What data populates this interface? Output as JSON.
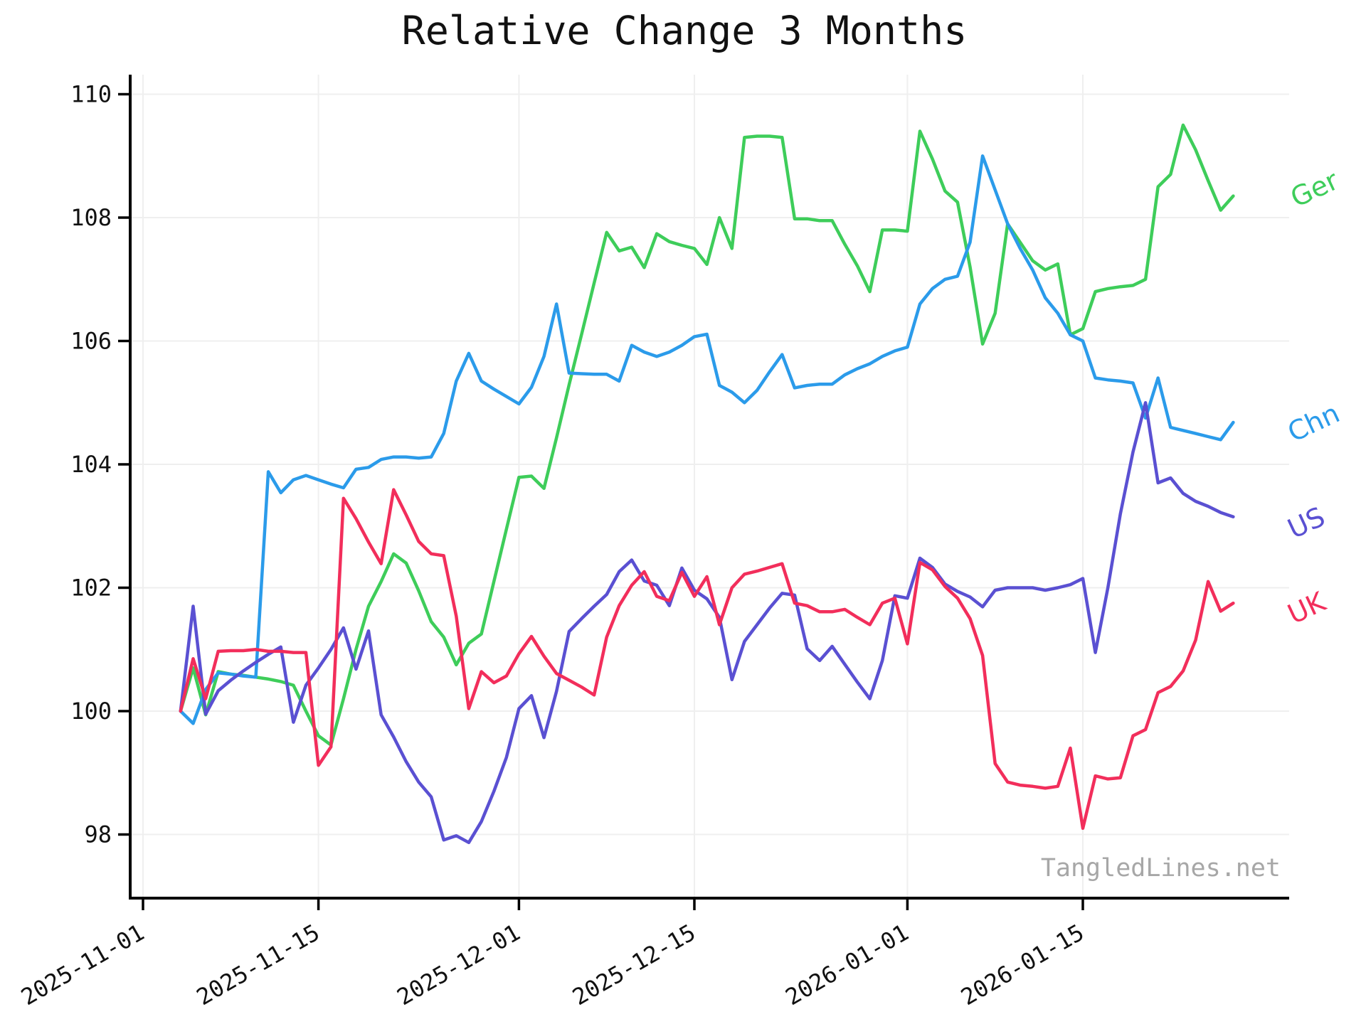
{
  "title": "Relative Change 3 Months",
  "watermark": "TangledLines.net",
  "chart_data": {
    "type": "line",
    "title": "Relative Change 3 Months",
    "xlabel": "",
    "ylabel": "",
    "grid": true,
    "legend_position": "right-of-plot-rotated",
    "ylim": [
      96.95,
      110.35
    ],
    "xlim": [
      "2025-10-31",
      "2026-02-01"
    ],
    "y_ticks": [
      98,
      100,
      102,
      104,
      106,
      108,
      110
    ],
    "x_ticks": [
      {
        "date": "2025-11-01",
        "label": "2025-11-01"
      },
      {
        "date": "2025-11-15",
        "label": "2025-11-15"
      },
      {
        "date": "2025-12-01",
        "label": "2025-12-01"
      },
      {
        "date": "2025-12-15",
        "label": "2025-12-15"
      },
      {
        "date": "2026-01-01",
        "label": "2026-01-01"
      },
      {
        "date": "2026-01-15",
        "label": "2026-01-15"
      }
    ],
    "x": [
      "2025-11-04",
      "2025-11-05",
      "2025-11-06",
      "2025-11-07",
      "2025-11-08",
      "2025-11-09",
      "2025-11-10",
      "2025-11-11",
      "2025-11-12",
      "2025-11-13",
      "2025-11-14",
      "2025-11-15",
      "2025-11-16",
      "2025-11-17",
      "2025-11-18",
      "2025-11-19",
      "2025-11-20",
      "2025-11-21",
      "2025-11-22",
      "2025-11-23",
      "2025-11-24",
      "2025-11-25",
      "2025-11-26",
      "2025-11-27",
      "2025-11-28",
      "2025-11-29",
      "2025-11-30",
      "2025-12-01",
      "2025-12-02",
      "2025-12-03",
      "2025-12-04",
      "2025-12-05",
      "2025-12-06",
      "2025-12-07",
      "2025-12-08",
      "2025-12-09",
      "2025-12-10",
      "2025-12-11",
      "2025-12-12",
      "2025-12-13",
      "2025-12-14",
      "2025-12-15",
      "2025-12-16",
      "2025-12-17",
      "2025-12-18",
      "2025-12-19",
      "2025-12-20",
      "2025-12-21",
      "2025-12-22",
      "2025-12-23",
      "2025-12-24",
      "2025-12-25",
      "2025-12-26",
      "2025-12-27",
      "2025-12-28",
      "2025-12-29",
      "2025-12-30",
      "2025-12-31",
      "2026-01-01",
      "2026-01-02",
      "2026-01-03",
      "2026-01-04",
      "2026-01-05",
      "2026-01-06",
      "2026-01-07",
      "2026-01-08",
      "2026-01-09",
      "2026-01-10",
      "2026-01-11",
      "2026-01-12",
      "2026-01-13",
      "2026-01-14",
      "2026-01-15",
      "2026-01-16",
      "2026-01-17",
      "2026-01-18",
      "2026-01-19",
      "2026-01-20",
      "2026-01-21",
      "2026-01-22",
      "2026-01-23",
      "2026-01-24",
      "2026-01-25",
      "2026-01-26",
      "2026-01-27"
    ],
    "series": [
      {
        "name": "Ger",
        "color": "#3ecd5a",
        "values": [
          100.0,
          100.7,
          99.94,
          100.64,
          100.6,
          100.58,
          100.55,
          100.52,
          100.48,
          100.42,
          100.0,
          99.6,
          99.45,
          100.2,
          101.0,
          101.7,
          102.1,
          102.55,
          102.4,
          101.95,
          101.45,
          101.2,
          100.75,
          101.1,
          101.25,
          102.1,
          102.95,
          103.79,
          103.81,
          103.61,
          104.43,
          105.29,
          106.11,
          106.94,
          107.76,
          107.46,
          107.52,
          107.19,
          107.74,
          107.61,
          107.55,
          107.5,
          107.24,
          108.0,
          107.5,
          109.3,
          109.32,
          109.32,
          109.3,
          107.98,
          107.98,
          107.95,
          107.95,
          107.57,
          107.22,
          106.8,
          107.8,
          107.8,
          107.78,
          109.4,
          108.95,
          108.43,
          108.25,
          107.2,
          105.95,
          106.45,
          107.9,
          107.6,
          107.3,
          107.15,
          107.25,
          106.1,
          106.2,
          106.8,
          106.85,
          106.88,
          106.9,
          107.0,
          108.5,
          108.7,
          109.5,
          109.1,
          108.6,
          108.12,
          108.35
        ]
      },
      {
        "name": "Chn",
        "color": "#2b9bea",
        "values": [
          100.0,
          99.8,
          100.35,
          100.62,
          100.6,
          100.57,
          100.55,
          103.88,
          103.54,
          103.75,
          103.82,
          103.75,
          103.68,
          103.62,
          103.92,
          103.95,
          104.08,
          104.12,
          104.12,
          104.1,
          104.12,
          104.5,
          105.35,
          105.8,
          105.35,
          105.22,
          105.1,
          104.98,
          105.25,
          105.75,
          106.6,
          105.48,
          105.47,
          105.46,
          105.46,
          105.35,
          105.93,
          105.82,
          105.75,
          105.82,
          105.93,
          106.07,
          106.11,
          105.28,
          105.17,
          105.0,
          105.2,
          105.5,
          105.78,
          105.24,
          105.28,
          105.3,
          105.3,
          105.45,
          105.55,
          105.63,
          105.75,
          105.84,
          105.9,
          106.6,
          106.85,
          107.0,
          107.05,
          107.6,
          109.0,
          108.45,
          107.9,
          107.5,
          107.15,
          106.7,
          106.45,
          106.1,
          106.0,
          105.4,
          105.37,
          105.35,
          105.32,
          104.75,
          105.4,
          104.6,
          104.55,
          104.5,
          104.45,
          104.4,
          104.68
        ]
      },
      {
        "name": "US",
        "color": "#5a50d2",
        "values": [
          100.0,
          101.7,
          99.95,
          100.33,
          100.5,
          100.65,
          100.79,
          100.92,
          101.04,
          99.82,
          100.42,
          100.7,
          101.0,
          101.35,
          100.68,
          101.3,
          99.94,
          99.58,
          99.18,
          98.85,
          98.61,
          97.91,
          97.98,
          97.87,
          98.21,
          98.7,
          99.25,
          100.04,
          100.25,
          99.57,
          100.32,
          101.29,
          101.5,
          101.7,
          101.89,
          102.26,
          102.45,
          102.11,
          102.04,
          101.71,
          102.32,
          101.96,
          101.82,
          101.52,
          100.51,
          101.13,
          101.4,
          101.67,
          101.91,
          101.88,
          101.01,
          100.82,
          101.05,
          100.76,
          100.47,
          100.2,
          100.82,
          101.87,
          101.83,
          102.48,
          102.33,
          102.06,
          101.94,
          101.85,
          101.69,
          101.96,
          102.0,
          102.0,
          102.0,
          101.96,
          102.0,
          102.05,
          102.15,
          100.95,
          102.0,
          103.2,
          104.2,
          105.0,
          103.7,
          103.78,
          103.53,
          103.4,
          103.32,
          103.22,
          103.15
        ]
      },
      {
        "name": "UK",
        "color": "#f22e5b",
        "values": [
          100.0,
          100.85,
          100.2,
          100.97,
          100.98,
          100.98,
          101.0,
          100.97,
          100.97,
          100.95,
          100.95,
          99.12,
          99.42,
          103.45,
          103.12,
          102.74,
          102.39,
          103.59,
          103.18,
          102.75,
          102.55,
          102.52,
          101.54,
          100.04,
          100.64,
          100.46,
          100.57,
          100.93,
          101.21,
          100.89,
          100.61,
          100.5,
          100.39,
          100.26,
          101.2,
          101.71,
          102.04,
          102.26,
          101.86,
          101.79,
          102.25,
          101.86,
          102.18,
          101.4,
          102.0,
          102.22,
          102.27,
          102.33,
          102.39,
          101.75,
          101.71,
          101.61,
          101.61,
          101.65,
          101.52,
          101.4,
          101.75,
          101.83,
          101.09,
          102.41,
          102.29,
          102.02,
          101.83,
          101.5,
          100.9,
          99.15,
          98.85,
          98.8,
          98.78,
          98.75,
          98.78,
          99.4,
          98.1,
          98.95,
          98.9,
          98.92,
          99.6,
          99.7,
          100.3,
          100.4,
          100.65,
          101.15,
          102.1,
          101.62,
          101.75
        ]
      }
    ],
    "colors": {
      "grid": "#efefef",
      "axis": "#000000",
      "tick_label": "#111111",
      "watermark": "#a7a7a7",
      "background": "#ffffff"
    }
  }
}
